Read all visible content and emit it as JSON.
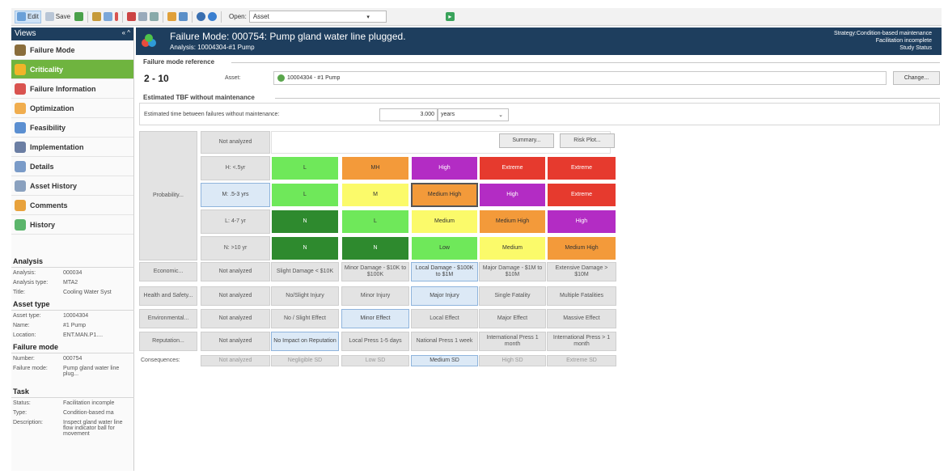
{
  "toolbar": {
    "edit_label": "Edit",
    "save_label": "Save",
    "open_label": "Open:",
    "open_value": "Asset"
  },
  "sidebar": {
    "title": "Views",
    "controls": "« ^",
    "items": [
      {
        "label": "Failure Mode",
        "color": "#8a6d3b"
      },
      {
        "label": "Criticality",
        "color": "#f0b429",
        "selected": true
      },
      {
        "label": "Failure Information",
        "color": "#d9534f"
      },
      {
        "label": "Optimization",
        "color": "#f0ad4e"
      },
      {
        "label": "Feasibility",
        "color": "#5b8fd1"
      },
      {
        "label": "Implementation",
        "color": "#6b7ea3"
      },
      {
        "label": "Details",
        "color": "#7a9bc8"
      },
      {
        "label": "Asset History",
        "color": "#8aa1bf"
      },
      {
        "label": "Comments",
        "color": "#e8a23c"
      },
      {
        "label": "History",
        "color": "#5bb56b"
      }
    ]
  },
  "info": {
    "analysis": {
      "heading": "Analysis",
      "rows": [
        {
          "k": "Analysis:",
          "v": "000034"
        },
        {
          "k": "Analysis type:",
          "v": "MTA2"
        },
        {
          "k": "Title:",
          "v": "Cooling Water Syst"
        }
      ]
    },
    "asset_type": {
      "heading": "Asset type",
      "rows": [
        {
          "k": "Asset type:",
          "v": "10004304"
        },
        {
          "k": "Name:",
          "v": "#1 Pump"
        },
        {
          "k": "Location:",
          "v": "ENT.MAN.P1...."
        }
      ]
    },
    "failure_mode": {
      "heading": "Failure mode",
      "rows": [
        {
          "k": "Number:",
          "v": "000754"
        },
        {
          "k": "Failure mode:",
          "v": "Pump gland water line plug..."
        }
      ]
    },
    "task": {
      "heading": "Task",
      "rows": [
        {
          "k": "Status:",
          "v": "Facilitation incomple"
        },
        {
          "k": "Type:",
          "v": "Condition-based ma"
        },
        {
          "k": "Description:",
          "v": "Inspect gland water line flow indicator ball for movement"
        }
      ]
    }
  },
  "header": {
    "title": "Failure Mode: 000754: Pump gland water line plugged.",
    "subtitle": "Analysis: 10004304-#1 Pump",
    "right_lines": [
      "Strategy:Condition-based maintenance",
      "Facilitation incomplete",
      "Study Status"
    ]
  },
  "reference": {
    "section_title": "Failure mode reference",
    "number": "2 - 10",
    "asset_label": "Asset:",
    "asset_value": "10004304 - #1 Pump",
    "change_label": "Change..."
  },
  "tbf": {
    "section_title": "Estimated TBF without maintenance",
    "label": "Estimated time between failures without maintenance:",
    "value": "3.000",
    "unit": "years"
  },
  "matrix": {
    "not_analyzed": "Not analyzed",
    "summary_label": "Summary...",
    "risk_plot_label": "Risk Plot...",
    "probability_label": "Probability...",
    "probability_rows": [
      "H: <.5yr",
      "M: .5-3 yrs",
      "L: 4-7 yr",
      "N: >10 yr"
    ],
    "selected_probability": 1,
    "risk_colors": {
      "L": "#6fe85a",
      "MH": "#f39a3a",
      "High": "#b32cc4",
      "Extreme": "#e63a2e",
      "M": "#fbfa6a",
      "Medium High": "#f39a3a",
      "N": "#2e8a2e",
      "Medium": "#fbfa6a",
      "Low": "#6fe85a"
    },
    "risk_grid": [
      [
        "L",
        "MH",
        "High",
        "Extreme",
        "Extreme"
      ],
      [
        "L",
        "M",
        "Medium High",
        "High",
        "Extreme"
      ],
      [
        "N",
        "L",
        "Medium",
        "Medium High",
        "High"
      ],
      [
        "N",
        "N",
        "Low",
        "Medium",
        "Medium High"
      ]
    ],
    "selected_risk": [
      1,
      2
    ],
    "categories": [
      {
        "label": "Economic...",
        "values": [
          "Slight Damage < $10K",
          "Minor Damage - $10K to $100K",
          "Local Damage - $100K to $1M",
          "Major Damage - $1M to $10M",
          "Extensive Damage > $10M"
        ],
        "selected": 2
      },
      {
        "label": "Health and Safety...",
        "values": [
          "No/Slight Injury",
          "Minor Injury",
          "Major Injury",
          "Single Fatality",
          "Multiple Fatalities"
        ],
        "selected": 2
      },
      {
        "label": "Environmental...",
        "values": [
          "No / Slight Effect",
          "Minor Effect",
          "Local Effect",
          "Major Effect",
          "Massive Effect"
        ],
        "selected": 1
      },
      {
        "label": "Reputation...",
        "values": [
          "No Impact on Reputation",
          "Local Press 1-5 days",
          "National Press 1 week",
          "International Press 1 month",
          "International Press > 1 month"
        ],
        "selected": 0
      }
    ],
    "consequences_label": "Consequences:",
    "consequences": [
      "Negligible SD",
      "Low SD",
      "Medium SD",
      "High SD",
      "Extreme SD"
    ],
    "selected_consequence": 2
  }
}
